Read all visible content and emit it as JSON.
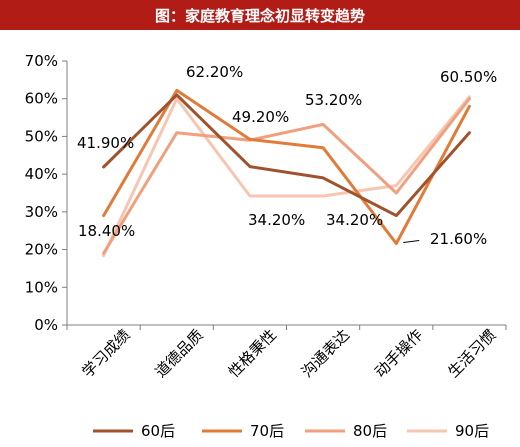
{
  "header": {
    "title": "图：家庭教育理念初显转变趋势"
  },
  "chart_data": {
    "type": "line",
    "categories": [
      "学习成绩",
      "道德品质",
      "性格秉性",
      "沟通表达",
      "动手操作",
      "生活习惯"
    ],
    "y_tick_labels": [
      "0%",
      "10%",
      "20%",
      "30%",
      "40%",
      "50%",
      "60%",
      "70%"
    ],
    "ylim": [
      0,
      70
    ],
    "grid": false,
    "legend": "bottom",
    "series": [
      {
        "name": "60后",
        "color": "#a0522d",
        "values": [
          41.9,
          61.0,
          42.0,
          39.0,
          29.0,
          51.0
        ]
      },
      {
        "name": "70后",
        "color": "#e07b39",
        "values": [
          29.0,
          62.2,
          49.2,
          47.0,
          21.6,
          58.0
        ]
      },
      {
        "name": "80后",
        "color": "#f0a07d",
        "values": [
          19.0,
          51.0,
          49.0,
          53.2,
          35.0,
          60.0
        ]
      },
      {
        "name": "90后",
        "color": "#f7c6b3",
        "values": [
          18.4,
          60.0,
          34.2,
          34.2,
          37.0,
          60.5
        ]
      }
    ],
    "annotations": [
      {
        "text": "41.90%"
      },
      {
        "text": "62.20%"
      },
      {
        "text": "49.20%"
      },
      {
        "text": "53.20%"
      },
      {
        "text": "60.50%"
      },
      {
        "text": "18.40%"
      },
      {
        "text": "34.20%"
      },
      {
        "text": "34.20%"
      },
      {
        "text": "21.60%"
      }
    ]
  }
}
